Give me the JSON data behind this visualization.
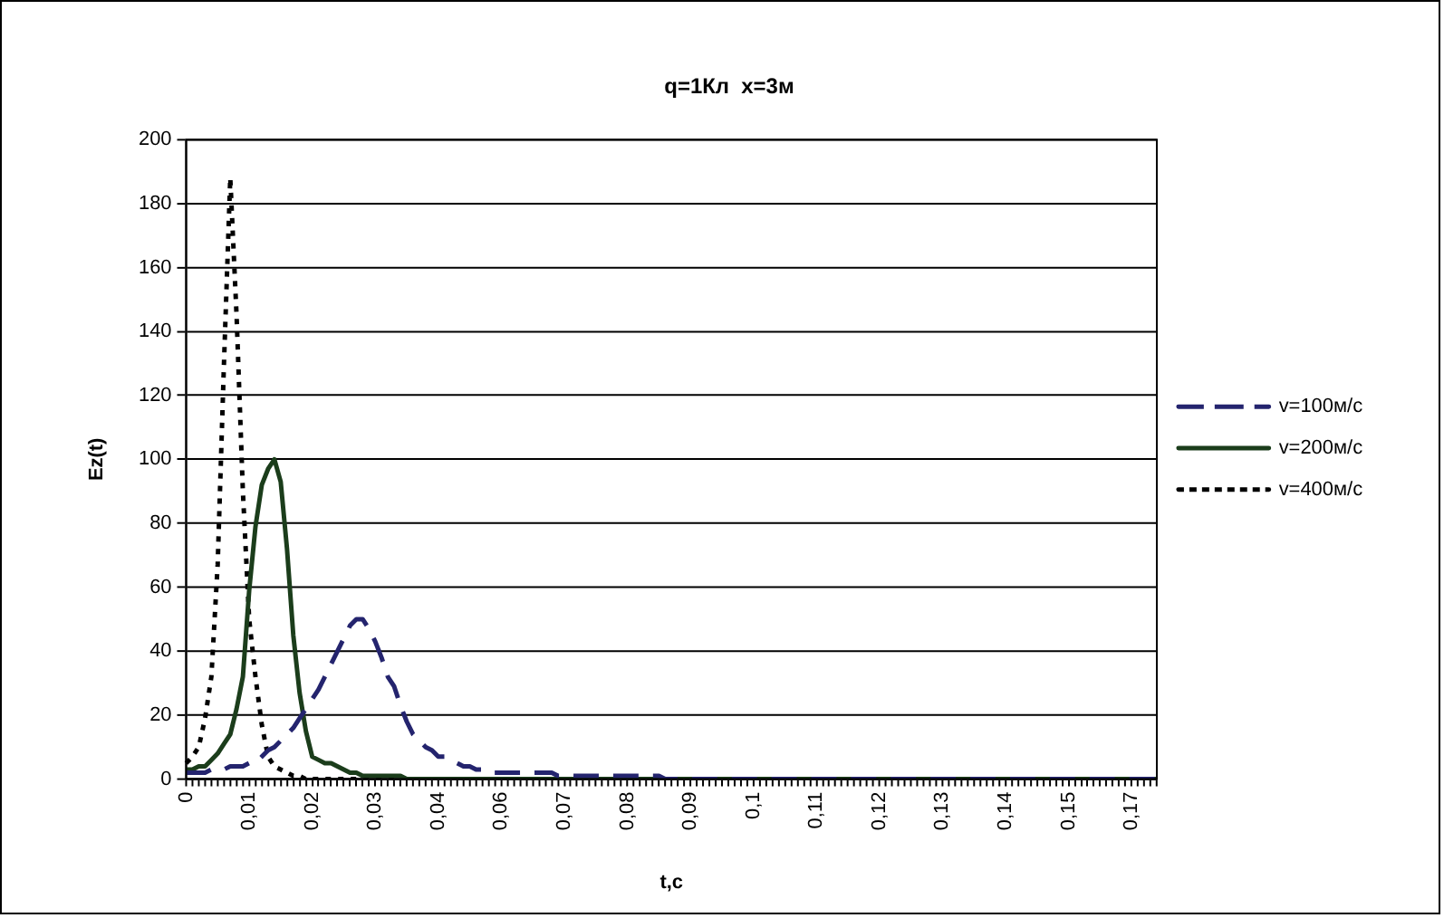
{
  "chart_data": {
    "type": "line",
    "title": "q=1Кл  x=3м",
    "xlabel": "t,c",
    "ylabel": "Ez(t)",
    "categories": [
      "0",
      null,
      null,
      null,
      null,
      null,
      null,
      null,
      null,
      null,
      "0,01",
      null,
      null,
      null,
      null,
      null,
      null,
      null,
      null,
      null,
      "0,02",
      null,
      null,
      null,
      null,
      null,
      null,
      null,
      null,
      null,
      "0,03",
      null,
      null,
      null,
      null,
      null,
      null,
      null,
      null,
      null,
      "0,04",
      null,
      null,
      null,
      null,
      null,
      null,
      null,
      null,
      null,
      "0,06",
      null,
      null,
      null,
      null,
      null,
      null,
      null,
      null,
      null,
      "0,07",
      null,
      null,
      null,
      null,
      null,
      null,
      null,
      null,
      null,
      "0,08",
      null,
      null,
      null,
      null,
      null,
      null,
      null,
      null,
      null,
      "0,09",
      null,
      null,
      null,
      null,
      null,
      null,
      null,
      null,
      null,
      "0,1",
      null,
      null,
      null,
      null,
      null,
      null,
      null,
      null,
      null,
      "0,11",
      null,
      null,
      null,
      null,
      null,
      null,
      null,
      null,
      null,
      "0,12",
      null,
      null,
      null,
      null,
      null,
      null,
      null,
      null,
      null,
      "0,13",
      null,
      null,
      null,
      null,
      null,
      null,
      null,
      null,
      null,
      "0,14",
      null,
      null,
      null,
      null,
      null,
      null,
      null,
      null,
      null,
      "0,15",
      null,
      null,
      null,
      null,
      null,
      null,
      null,
      null,
      null,
      "0,17",
      null,
      null,
      null,
      null
    ],
    "ylim": [
      0,
      200
    ],
    "yticks": [
      0,
      20,
      40,
      60,
      80,
      100,
      120,
      140,
      160,
      180,
      200
    ],
    "grid": "y",
    "legend": "right",
    "marker": "none",
    "series": [
      {
        "name": "v=100м/с",
        "color": "#24246e",
        "line_style": "dashed",
        "values": [
          2,
          2,
          2,
          2,
          3,
          3,
          3,
          4,
          4,
          4,
          5,
          5,
          7,
          9,
          10,
          12,
          14,
          16,
          19,
          22,
          25,
          28,
          32,
          36,
          40,
          44,
          48,
          50,
          50,
          47,
          43,
          38,
          32,
          29,
          23,
          18,
          14,
          12,
          10,
          9,
          7,
          7,
          6,
          5,
          4,
          4,
          3,
          3,
          2,
          2,
          2,
          2,
          2,
          2,
          2,
          2,
          2,
          2,
          2,
          1,
          1,
          1,
          1,
          1,
          1,
          1,
          1,
          1,
          1,
          1,
          1,
          1,
          1,
          1,
          1,
          1,
          0,
          0,
          0,
          0,
          0,
          0,
          0,
          0,
          0,
          0,
          0,
          0,
          0,
          0,
          0,
          0,
          0,
          0,
          0,
          0,
          0,
          0,
          0,
          0,
          0,
          0,
          0,
          0,
          0,
          0,
          0,
          0,
          0,
          0,
          0,
          0,
          0,
          0,
          0,
          0,
          0,
          0,
          0,
          0,
          0,
          0,
          0,
          0,
          0,
          0,
          0,
          0,
          0,
          0,
          0,
          0,
          0,
          0,
          0,
          0,
          0,
          0,
          0,
          0,
          0,
          0,
          0,
          0,
          0,
          0,
          0,
          0,
          0,
          0,
          0,
          0,
          0,
          0,
          0
        ]
      },
      {
        "name": "v=200м/с",
        "color": "#1b3d1b",
        "line_style": "solid",
        "values": [
          3,
          3,
          4,
          4,
          6,
          8,
          11,
          14,
          22,
          32,
          59,
          79,
          92,
          97,
          100,
          93,
          72,
          45,
          27,
          15,
          7,
          6,
          5,
          5,
          4,
          3,
          2,
          2,
          1,
          1,
          1,
          1,
          1,
          1,
          1,
          0,
          0,
          0,
          0,
          0,
          0,
          0,
          0,
          0,
          0,
          0,
          0,
          0,
          0,
          0,
          0,
          0,
          0,
          0,
          0,
          0,
          0,
          0,
          0,
          0,
          0,
          0,
          0,
          0,
          0,
          0,
          0,
          0,
          0,
          0,
          0,
          0,
          0,
          0,
          0,
          0,
          0,
          0,
          0,
          0,
          0,
          0,
          0,
          0,
          0,
          0,
          0,
          0,
          0,
          0,
          0,
          0,
          0,
          0,
          0,
          0,
          0,
          0,
          0,
          0,
          0,
          0,
          0,
          0,
          0,
          0,
          0,
          0,
          0,
          0,
          0,
          0,
          0,
          0,
          0,
          0,
          0,
          0,
          0,
          0,
          0,
          0,
          0,
          0,
          0,
          0,
          0,
          0,
          0,
          0,
          0,
          0,
          0,
          0,
          0,
          0,
          0,
          0,
          0,
          0,
          0,
          0,
          0,
          0,
          0,
          0,
          0,
          0,
          0,
          0,
          0,
          0,
          0,
          0,
          0
        ]
      },
      {
        "name": "v=400м/с",
        "color": "#000000",
        "line_style": "dotted",
        "values": [
          5,
          7,
          10,
          19,
          32,
          67,
          130,
          188,
          145,
          90,
          50,
          32,
          17,
          7,
          4,
          3,
          2,
          1,
          1,
          0,
          0,
          0,
          0,
          0,
          0,
          0,
          0,
          0,
          0,
          0,
          0,
          0,
          0,
          0,
          0,
          0,
          0,
          0,
          0,
          0,
          0,
          0,
          0,
          0,
          0,
          0,
          0,
          0,
          0,
          0,
          0,
          0,
          0,
          0,
          0,
          0,
          0,
          0,
          0,
          0,
          0,
          0,
          0,
          0,
          0,
          0,
          0,
          0,
          0,
          0,
          0,
          0,
          0,
          0,
          0,
          0,
          0,
          0,
          0,
          0,
          0,
          0,
          0,
          0,
          0,
          0,
          0,
          0,
          0,
          0,
          0,
          0,
          0,
          0,
          0,
          0,
          0,
          0,
          0,
          0,
          0,
          0,
          0,
          0,
          0,
          0,
          0,
          0,
          0,
          0,
          0,
          0,
          0,
          0,
          0,
          0,
          0,
          0,
          0,
          0,
          0,
          0,
          0,
          0,
          0,
          0,
          0,
          0,
          0,
          0,
          0,
          0,
          0,
          0,
          0,
          0,
          0,
          0,
          0,
          0,
          0,
          0,
          0,
          0,
          0,
          0,
          0,
          0,
          0,
          0,
          0,
          0,
          0,
          0,
          0
        ]
      }
    ]
  }
}
